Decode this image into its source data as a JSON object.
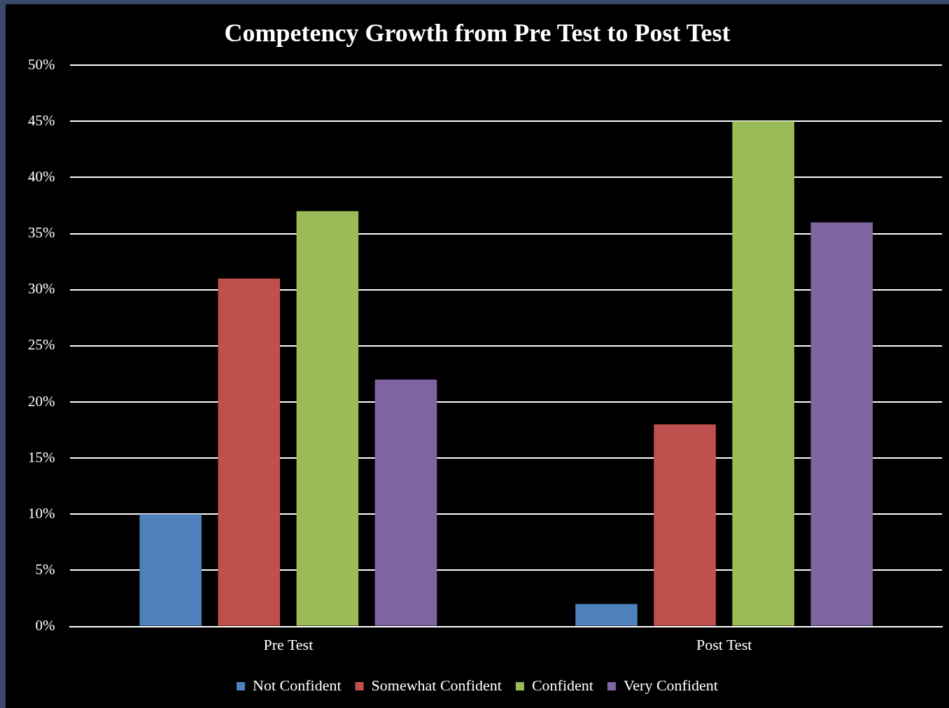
{
  "chart_data": {
    "type": "bar",
    "title": "Competency Growth from Pre Test to Post Test",
    "categories": [
      "Pre Test",
      "Post Test"
    ],
    "series": [
      {
        "name": "Not Confident",
        "color": "#4f81bd",
        "values": [
          10,
          2
        ]
      },
      {
        "name": "Somewhat Confident",
        "color": "#c0504d",
        "values": [
          31,
          18
        ]
      },
      {
        "name": "Confident",
        "color": "#9bbb59",
        "values": [
          37,
          45
        ]
      },
      {
        "name": "Very Confident",
        "color": "#8064a2",
        "values": [
          22,
          36
        ]
      }
    ],
    "ylim": [
      0,
      50
    ],
    "yticks": [
      {
        "value": 0,
        "label": "0%"
      },
      {
        "value": 5,
        "label": "5%"
      },
      {
        "value": 10,
        "label": "10%"
      },
      {
        "value": 15,
        "label": "15%"
      },
      {
        "value": 20,
        "label": "20%"
      },
      {
        "value": 25,
        "label": "25%"
      },
      {
        "value": 30,
        "label": "30%"
      },
      {
        "value": 35,
        "label": "35%"
      },
      {
        "value": 40,
        "label": "40%"
      },
      {
        "value": 45,
        "label": "45%"
      },
      {
        "value": 50,
        "label": "50%"
      }
    ],
    "grid": "y",
    "legend": "bottom"
  }
}
